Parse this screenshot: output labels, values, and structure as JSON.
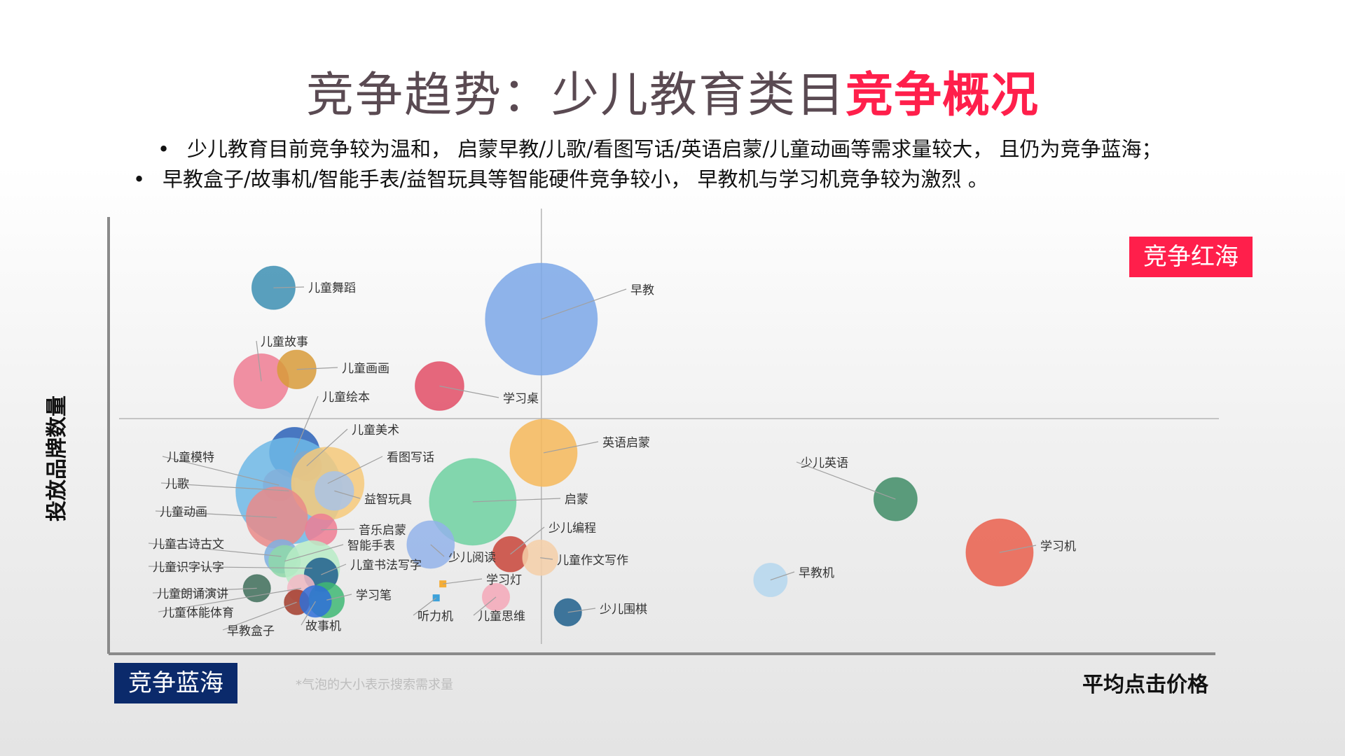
{
  "header": {
    "title_main": "竞争趋势：少儿教育类目",
    "title_accent": "竞争概况",
    "bullets": [
      "少儿教育目前竞争较为温和， 启蒙早教/儿歌/看图写话/英语启蒙/儿童动画等需求量较大， 且仍为竞争蓝海；",
      "早教盒子/故事机/智能手表/益智玩具等智能硬件竞争较小， 早教机与学习机竞争较为激烈 。"
    ],
    "bullet_symbol": "•"
  },
  "tags": {
    "red_sea": "竞争红海",
    "blue_sea": "竞争蓝海"
  },
  "note": "*气泡的大小表示搜索需求量",
  "colors": {
    "accent_red": "#ff1f4b",
    "deep_blue": "#0b2a6b",
    "axis": "#888888",
    "leader": "#aaaaaa"
  },
  "chart_data": {
    "type": "scatter",
    "subtype": "bubble",
    "xlabel": "平均点击价格",
    "ylabel": "投放品牌数量",
    "title": "",
    "grid": false,
    "quadrant_lines": true,
    "points": [
      {
        "label": "早教",
        "x": 0.391,
        "y": 0.766,
        "size": 1.0,
        "color": "#7ba7e8"
      },
      {
        "label": "儿童舞蹈",
        "x": 0.149,
        "y": 0.838,
        "size": 0.15,
        "color": "#3d8fb3"
      },
      {
        "label": "儿童故事",
        "x": 0.138,
        "y": 0.624,
        "size": 0.24,
        "color": "#ef7c93"
      },
      {
        "label": "儿童画画",
        "x": 0.17,
        "y": 0.651,
        "size": 0.12,
        "color": "#d89b3a"
      },
      {
        "label": "学习桌",
        "x": 0.299,
        "y": 0.613,
        "size": 0.19,
        "color": "#e24d66"
      },
      {
        "label": "儿童绘本",
        "x": 0.168,
        "y": 0.461,
        "size": 0.2,
        "color": "#2a62b8"
      },
      {
        "label": "儿童美术",
        "x": 0.179,
        "y": 0.43,
        "size": 0.07,
        "color": "#e04a3c"
      },
      {
        "label": "儿童模特",
        "x": 0.154,
        "y": 0.386,
        "size": 0.08,
        "color": "#ef7c93"
      },
      {
        "label": "儿歌",
        "x": 0.163,
        "y": 0.373,
        "size": 0.9,
        "color": "#6fb8e6"
      },
      {
        "label": "看图写话",
        "x": 0.198,
        "y": 0.39,
        "size": 0.42,
        "color": "#f6c97a"
      },
      {
        "label": "益智玩具",
        "x": 0.204,
        "y": 0.373,
        "size": 0.12,
        "color": "#a9c3e6"
      },
      {
        "label": "儿童动画",
        "x": 0.152,
        "y": 0.312,
        "size": 0.3,
        "color": "#ea8a88"
      },
      {
        "label": "音乐启蒙",
        "x": 0.192,
        "y": 0.284,
        "size": 0.08,
        "color": "#ef7c93"
      },
      {
        "label": "启蒙",
        "x": 0.329,
        "y": 0.348,
        "size": 0.6,
        "color": "#6fd1a1"
      },
      {
        "label": "英语启蒙",
        "x": 0.393,
        "y": 0.46,
        "size": 0.36,
        "color": "#f6b95a"
      },
      {
        "label": "少儿英语",
        "x": 0.711,
        "y": 0.354,
        "size": 0.15,
        "color": "#3f8c66"
      },
      {
        "label": "学习机",
        "x": 0.805,
        "y": 0.232,
        "size": 0.36,
        "color": "#ea5f4c"
      },
      {
        "label": "少儿阅读",
        "x": 0.291,
        "y": 0.25,
        "size": 0.18,
        "color": "#93b3ea"
      },
      {
        "label": "少儿编程",
        "x": 0.363,
        "y": 0.228,
        "size": 0.1,
        "color": "#c9453a"
      },
      {
        "label": "儿童作文写作",
        "x": 0.39,
        "y": 0.22,
        "size": 0.1,
        "color": "#f5cfa8"
      },
      {
        "label": "早教机",
        "x": 0.598,
        "y": 0.169,
        "size": 0.09,
        "color": "#b5d7ef"
      },
      {
        "label": "儿童古诗古文",
        "x": 0.156,
        "y": 0.223,
        "size": 0.09,
        "color": "#7fb0e0"
      },
      {
        "label": "智能手表",
        "x": 0.159,
        "y": 0.212,
        "size": 0.08,
        "color": "#8fd8a8"
      },
      {
        "label": "儿童识字认字",
        "x": 0.184,
        "y": 0.196,
        "size": 0.24,
        "color": "#b9ecc7"
      },
      {
        "label": "儿童书法写字",
        "x": 0.192,
        "y": 0.181,
        "size": 0.09,
        "color": "#1e5f8c"
      },
      {
        "label": "学习灯",
        "x": 0.302,
        "y": 0.16,
        "size": 0.04,
        "color": "#f5a623"
      },
      {
        "label": "儿童朗诵演讲",
        "x": 0.134,
        "y": 0.15,
        "size": 0.06,
        "color": "#3f6e5a"
      },
      {
        "label": "儿童体能体育",
        "x": 0.174,
        "y": 0.15,
        "size": 0.06,
        "color": "#f5b8c6"
      },
      {
        "label": "早教盒子",
        "x": 0.17,
        "y": 0.118,
        "size": 0.05,
        "color": "#a23c2c"
      },
      {
        "label": "学习笔",
        "x": 0.197,
        "y": 0.123,
        "size": 0.1,
        "color": "#3fb874"
      },
      {
        "label": "故事机",
        "x": 0.187,
        "y": 0.12,
        "size": 0.08,
        "color": "#2f6fd8"
      },
      {
        "label": "听力机",
        "x": 0.296,
        "y": 0.128,
        "size": 0.04,
        "color": "#2a9ad8"
      },
      {
        "label": "儿童思维",
        "x": 0.35,
        "y": 0.13,
        "size": 0.06,
        "color": "#f5a8b8"
      },
      {
        "label": "少儿围棋",
        "x": 0.415,
        "y": 0.095,
        "size": 0.06,
        "color": "#1e5f8c"
      }
    ]
  }
}
